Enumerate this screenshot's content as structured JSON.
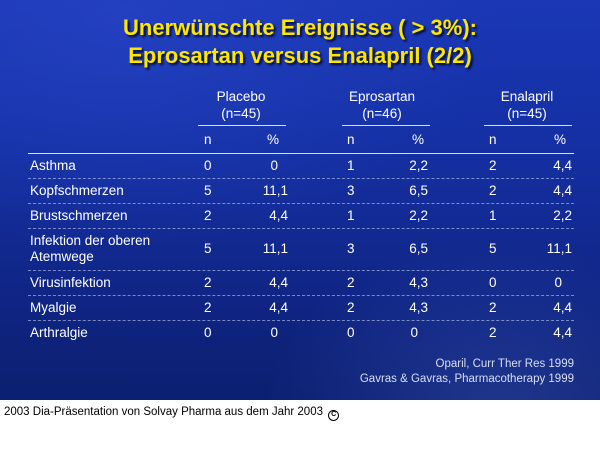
{
  "slide": {
    "title_line1": "Unerwünschte Ereignisse ( > 3%):",
    "title_line2": "Eprosartan versus Enalapril (2/2)",
    "groups": [
      {
        "name": "Placebo",
        "n": "(n=45)",
        "sub_n": "n",
        "sub_pct": "%"
      },
      {
        "name": "Eprosartan",
        "n": "(n=46)",
        "sub_n": "n",
        "sub_pct": "%"
      },
      {
        "name": "Enalapril",
        "n": "(n=45)",
        "sub_n": "n",
        "sub_pct": "%"
      }
    ],
    "rows": [
      {
        "label": "Asthma",
        "values": [
          "0",
          "0",
          "1",
          "2,2",
          "2",
          "4,4"
        ]
      },
      {
        "label": "Kopfschmerzen",
        "values": [
          "5",
          "11,1",
          "3",
          "6,5",
          "2",
          "4,4"
        ]
      },
      {
        "label": "Brustschmerzen",
        "values": [
          "2",
          "4,4",
          "1",
          "2,2",
          "1",
          "2,2"
        ]
      },
      {
        "label": "Infektion der oberen Atemwege",
        "values": [
          "5",
          "11,1",
          "3",
          "6,5",
          "5",
          "11,1"
        ]
      },
      {
        "label": "Virusinfektion",
        "values": [
          "2",
          "4,4",
          "2",
          "4,3",
          "0",
          "0"
        ]
      },
      {
        "label": "Myalgie",
        "values": [
          "2",
          "4,4",
          "2",
          "4,3",
          "2",
          "4,4"
        ]
      },
      {
        "label": "Arthralgie",
        "values": [
          "0",
          "0",
          "0",
          "0",
          "2",
          "4,4"
        ]
      }
    ],
    "source_line1": "Oparil, Curr Ther Res 1999",
    "source_line2": "Gavras & Gavras, Pharmacotherapy 1999"
  },
  "caption": "2003 Dia-Präsentation von Solvay Pharma aus dem Jahr 2003",
  "caption_symbol": "C",
  "colors": {
    "title": "#ffe600",
    "background": "#1530a4",
    "text": "#ffffff"
  }
}
